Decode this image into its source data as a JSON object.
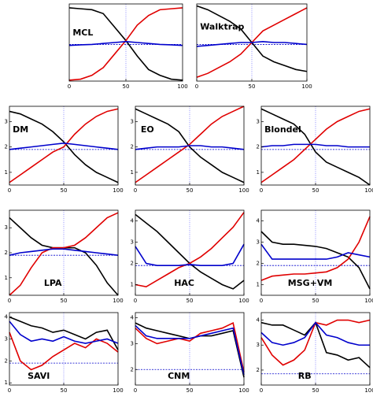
{
  "chart_data": [
    {
      "type": "line",
      "title": "MCL",
      "x": [
        0,
        10,
        20,
        30,
        40,
        50,
        60,
        70,
        80,
        90,
        100
      ],
      "xlim": [
        0,
        100
      ],
      "xticks": [
        0,
        50,
        100
      ],
      "ylim": [
        0,
        4
      ],
      "hline": 1.9,
      "vline": 50,
      "series": [
        {
          "color": "#000000",
          "values": [
            3.8,
            3.75,
            3.7,
            3.5,
            2.8,
            2.1,
            1.3,
            0.6,
            0.3,
            0.1,
            0.05
          ]
        },
        {
          "color": "#e00000",
          "values": [
            0.05,
            0.1,
            0.3,
            0.7,
            1.4,
            2.1,
            2.9,
            3.4,
            3.7,
            3.75,
            3.8
          ]
        },
        {
          "color": "#0000cc",
          "values": [
            1.85,
            1.88,
            1.9,
            1.95,
            2.0,
            2.05,
            2.0,
            1.95,
            1.9,
            1.88,
            1.85
          ]
        }
      ]
    },
    {
      "type": "line",
      "title": "Walktrap",
      "x": [
        0,
        10,
        20,
        30,
        40,
        50,
        60,
        70,
        80,
        90,
        100
      ],
      "xlim": [
        0,
        100
      ],
      "xticks": [
        0,
        50,
        100
      ],
      "ylim": [
        0,
        4
      ],
      "hline": 1.9,
      "vline": 50,
      "series": [
        {
          "color": "#000000",
          "values": [
            3.9,
            3.7,
            3.4,
            3.1,
            2.7,
            2.0,
            1.3,
            1.0,
            0.8,
            0.6,
            0.5
          ]
        },
        {
          "color": "#e00000",
          "values": [
            0.2,
            0.4,
            0.7,
            1.0,
            1.4,
            2.0,
            2.6,
            2.9,
            3.2,
            3.5,
            3.8
          ]
        },
        {
          "color": "#0000cc",
          "values": [
            1.8,
            1.85,
            1.9,
            1.95,
            2.0,
            2.0,
            2.05,
            2.0,
            2.0,
            1.95,
            1.9
          ]
        }
      ]
    },
    {
      "type": "line",
      "title": "DM",
      "x": [
        0,
        10,
        20,
        30,
        40,
        50,
        60,
        70,
        80,
        90,
        100
      ],
      "xlim": [
        0,
        100
      ],
      "xticks": [
        0,
        50,
        100
      ],
      "ylim": [
        0.5,
        3.6
      ],
      "yticks": [
        1,
        2,
        3
      ],
      "hline": 1.9,
      "vline": 50,
      "series": [
        {
          "color": "#000000",
          "values": [
            3.4,
            3.3,
            3.1,
            2.9,
            2.6,
            2.2,
            1.7,
            1.3,
            1.0,
            0.8,
            0.6
          ]
        },
        {
          "color": "#e00000",
          "values": [
            0.6,
            0.9,
            1.2,
            1.5,
            1.8,
            2.0,
            2.5,
            2.9,
            3.2,
            3.4,
            3.5
          ]
        },
        {
          "color": "#0000cc",
          "values": [
            1.9,
            1.95,
            2.0,
            2.05,
            2.1,
            2.15,
            2.1,
            2.05,
            2.0,
            1.95,
            1.9
          ]
        }
      ]
    },
    {
      "type": "line",
      "title": "EO",
      "x": [
        0,
        10,
        20,
        30,
        40,
        50,
        60,
        70,
        80,
        90,
        100
      ],
      "xlim": [
        0,
        100
      ],
      "xticks": [
        0,
        50,
        100
      ],
      "ylim": [
        0.5,
        3.6
      ],
      "yticks": [
        1,
        2,
        3
      ],
      "hline": 1.9,
      "vline": 50,
      "series": [
        {
          "color": "#000000",
          "values": [
            3.5,
            3.3,
            3.1,
            2.9,
            2.6,
            2.0,
            1.6,
            1.3,
            1.0,
            0.8,
            0.6
          ]
        },
        {
          "color": "#e00000",
          "values": [
            0.6,
            0.9,
            1.2,
            1.5,
            1.8,
            2.1,
            2.5,
            2.9,
            3.2,
            3.4,
            3.6
          ]
        },
        {
          "color": "#0000cc",
          "values": [
            1.9,
            1.95,
            2.0,
            2.0,
            2.0,
            2.05,
            2.05,
            2.0,
            2.0,
            1.95,
            1.9
          ]
        }
      ]
    },
    {
      "type": "line",
      "title": "Blondel",
      "x": [
        0,
        10,
        20,
        30,
        40,
        50,
        60,
        70,
        80,
        90,
        100
      ],
      "xlim": [
        0,
        100
      ],
      "xticks": [
        0,
        50,
        100
      ],
      "ylim": [
        0.5,
        3.6
      ],
      "yticks": [
        1,
        2,
        3
      ],
      "hline": 1.9,
      "vline": 50,
      "series": [
        {
          "color": "#000000",
          "values": [
            3.5,
            3.3,
            3.1,
            2.9,
            2.5,
            1.8,
            1.4,
            1.2,
            1.0,
            0.8,
            0.5
          ]
        },
        {
          "color": "#e00000",
          "values": [
            0.6,
            0.9,
            1.2,
            1.5,
            1.9,
            2.3,
            2.7,
            3.0,
            3.2,
            3.4,
            3.5
          ]
        },
        {
          "color": "#0000cc",
          "values": [
            2.0,
            2.05,
            2.05,
            2.1,
            2.1,
            2.1,
            2.05,
            2.05,
            2.0,
            2.0,
            2.0
          ]
        }
      ]
    },
    {
      "type": "line",
      "title": "LPA",
      "x": [
        0,
        10,
        20,
        30,
        40,
        50,
        60,
        70,
        80,
        90,
        100
      ],
      "xlim": [
        0,
        100
      ],
      "xticks": [
        0,
        50,
        100
      ],
      "ylim": [
        0.3,
        3.7
      ],
      "yticks": [
        1,
        2,
        3
      ],
      "hline": 1.9,
      "vline": 50,
      "series": [
        {
          "color": "#000000",
          "values": [
            3.4,
            3.0,
            2.6,
            2.3,
            2.2,
            2.2,
            2.2,
            2.0,
            1.5,
            0.8,
            0.3
          ]
        },
        {
          "color": "#e00000",
          "values": [
            0.3,
            0.7,
            1.4,
            2.0,
            2.2,
            2.2,
            2.3,
            2.6,
            3.0,
            3.4,
            3.6
          ]
        },
        {
          "color": "#0000cc",
          "values": [
            1.9,
            2.0,
            2.05,
            2.1,
            2.15,
            2.15,
            2.1,
            2.05,
            2.0,
            1.95,
            1.9
          ]
        }
      ]
    },
    {
      "type": "line",
      "title": "HAC",
      "x": [
        0,
        10,
        20,
        30,
        40,
        50,
        60,
        70,
        80,
        90,
        100
      ],
      "xlim": [
        0,
        100
      ],
      "xticks": [
        0,
        50,
        100
      ],
      "ylim": [
        0.5,
        4.5
      ],
      "yticks": [
        1,
        2,
        3,
        4
      ],
      "hline": 1.9,
      "vline": 50,
      "series": [
        {
          "color": "#000000",
          "values": [
            4.3,
            3.9,
            3.5,
            3.0,
            2.5,
            2.0,
            1.6,
            1.3,
            1.0,
            0.8,
            1.2
          ]
        },
        {
          "color": "#e00000",
          "values": [
            1.0,
            0.9,
            1.2,
            1.5,
            1.8,
            2.0,
            2.3,
            2.7,
            3.2,
            3.7,
            4.4
          ]
        },
        {
          "color": "#0000cc",
          "values": [
            2.8,
            2.0,
            1.9,
            1.9,
            1.9,
            1.95,
            1.9,
            1.9,
            1.9,
            2.0,
            2.9
          ]
        }
      ]
    },
    {
      "type": "line",
      "title": "MSG+VM",
      "x": [
        0,
        10,
        20,
        30,
        40,
        50,
        60,
        70,
        80,
        90,
        100
      ],
      "xlim": [
        0,
        100
      ],
      "xticks": [
        0,
        50,
        100
      ],
      "ylim": [
        0.5,
        4.5
      ],
      "yticks": [
        1,
        2,
        3,
        4
      ],
      "hline": 1.9,
      "vline": 50,
      "series": [
        {
          "color": "#000000",
          "values": [
            3.5,
            3.0,
            2.9,
            2.9,
            2.85,
            2.8,
            2.7,
            2.5,
            2.3,
            1.8,
            0.8
          ]
        },
        {
          "color": "#e00000",
          "values": [
            1.2,
            1.4,
            1.45,
            1.5,
            1.5,
            1.55,
            1.6,
            1.8,
            2.2,
            3.0,
            4.2
          ]
        },
        {
          "color": "#0000cc",
          "values": [
            2.9,
            2.2,
            2.2,
            2.2,
            2.2,
            2.2,
            2.2,
            2.3,
            2.5,
            2.4,
            2.3
          ]
        }
      ]
    },
    {
      "type": "line",
      "title": "SAVI",
      "x": [
        0,
        10,
        20,
        30,
        40,
        50,
        60,
        70,
        80,
        90,
        100
      ],
      "xlim": [
        0,
        100
      ],
      "xticks": [
        0,
        50,
        100
      ],
      "ylim": [
        0.9,
        4.2
      ],
      "yticks": [
        1,
        2,
        3,
        4
      ],
      "hline": 1.9,
      "vline": 50,
      "series": [
        {
          "color": "#000000",
          "values": [
            4.0,
            3.8,
            3.6,
            3.5,
            3.3,
            3.4,
            3.2,
            3.0,
            3.3,
            3.4,
            2.5
          ]
        },
        {
          "color": "#e00000",
          "values": [
            3.3,
            2.0,
            1.6,
            1.8,
            2.2,
            2.5,
            2.8,
            2.6,
            3.0,
            2.8,
            2.4
          ]
        },
        {
          "color": "#0000cc",
          "values": [
            3.8,
            3.2,
            2.9,
            3.0,
            2.9,
            3.1,
            2.9,
            2.8,
            2.9,
            3.0,
            2.8
          ]
        }
      ]
    },
    {
      "type": "line",
      "title": "CNM",
      "x": [
        0,
        10,
        20,
        30,
        40,
        50,
        60,
        70,
        80,
        90,
        100
      ],
      "xlim": [
        0,
        100
      ],
      "xticks": [
        0,
        50,
        100
      ],
      "ylim": [
        1.4,
        4.2
      ],
      "yticks": [
        2,
        3,
        4
      ],
      "hline": 2.0,
      "vline": 50,
      "series": [
        {
          "color": "#000000",
          "values": [
            3.8,
            3.6,
            3.5,
            3.4,
            3.3,
            3.2,
            3.3,
            3.3,
            3.4,
            3.5,
            1.7
          ]
        },
        {
          "color": "#e00000",
          "values": [
            3.6,
            3.2,
            3.0,
            3.1,
            3.2,
            3.1,
            3.4,
            3.5,
            3.6,
            3.8,
            1.9
          ]
        },
        {
          "color": "#0000cc",
          "values": [
            3.7,
            3.3,
            3.2,
            3.2,
            3.2,
            3.2,
            3.3,
            3.4,
            3.5,
            3.6,
            1.8
          ]
        }
      ]
    },
    {
      "type": "line",
      "title": "RB",
      "x": [
        0,
        10,
        20,
        30,
        40,
        50,
        60,
        70,
        80,
        90,
        100
      ],
      "xlim": [
        0,
        100
      ],
      "xticks": [
        0,
        50,
        100
      ],
      "ylim": [
        1.4,
        4.3
      ],
      "yticks": [
        2,
        3,
        4
      ],
      "hline": 1.85,
      "vline": 50,
      "series": [
        {
          "color": "#000000",
          "values": [
            3.9,
            3.8,
            3.8,
            3.6,
            3.4,
            3.9,
            2.7,
            2.6,
            2.4,
            2.5,
            2.1
          ]
        },
        {
          "color": "#e00000",
          "values": [
            3.3,
            2.6,
            2.2,
            2.4,
            2.8,
            3.9,
            3.8,
            4.0,
            4.0,
            3.9,
            4.0
          ]
        },
        {
          "color": "#0000cc",
          "values": [
            3.5,
            3.1,
            3.0,
            3.1,
            3.3,
            3.9,
            3.4,
            3.3,
            3.1,
            3.0,
            3.0
          ]
        }
      ]
    }
  ]
}
